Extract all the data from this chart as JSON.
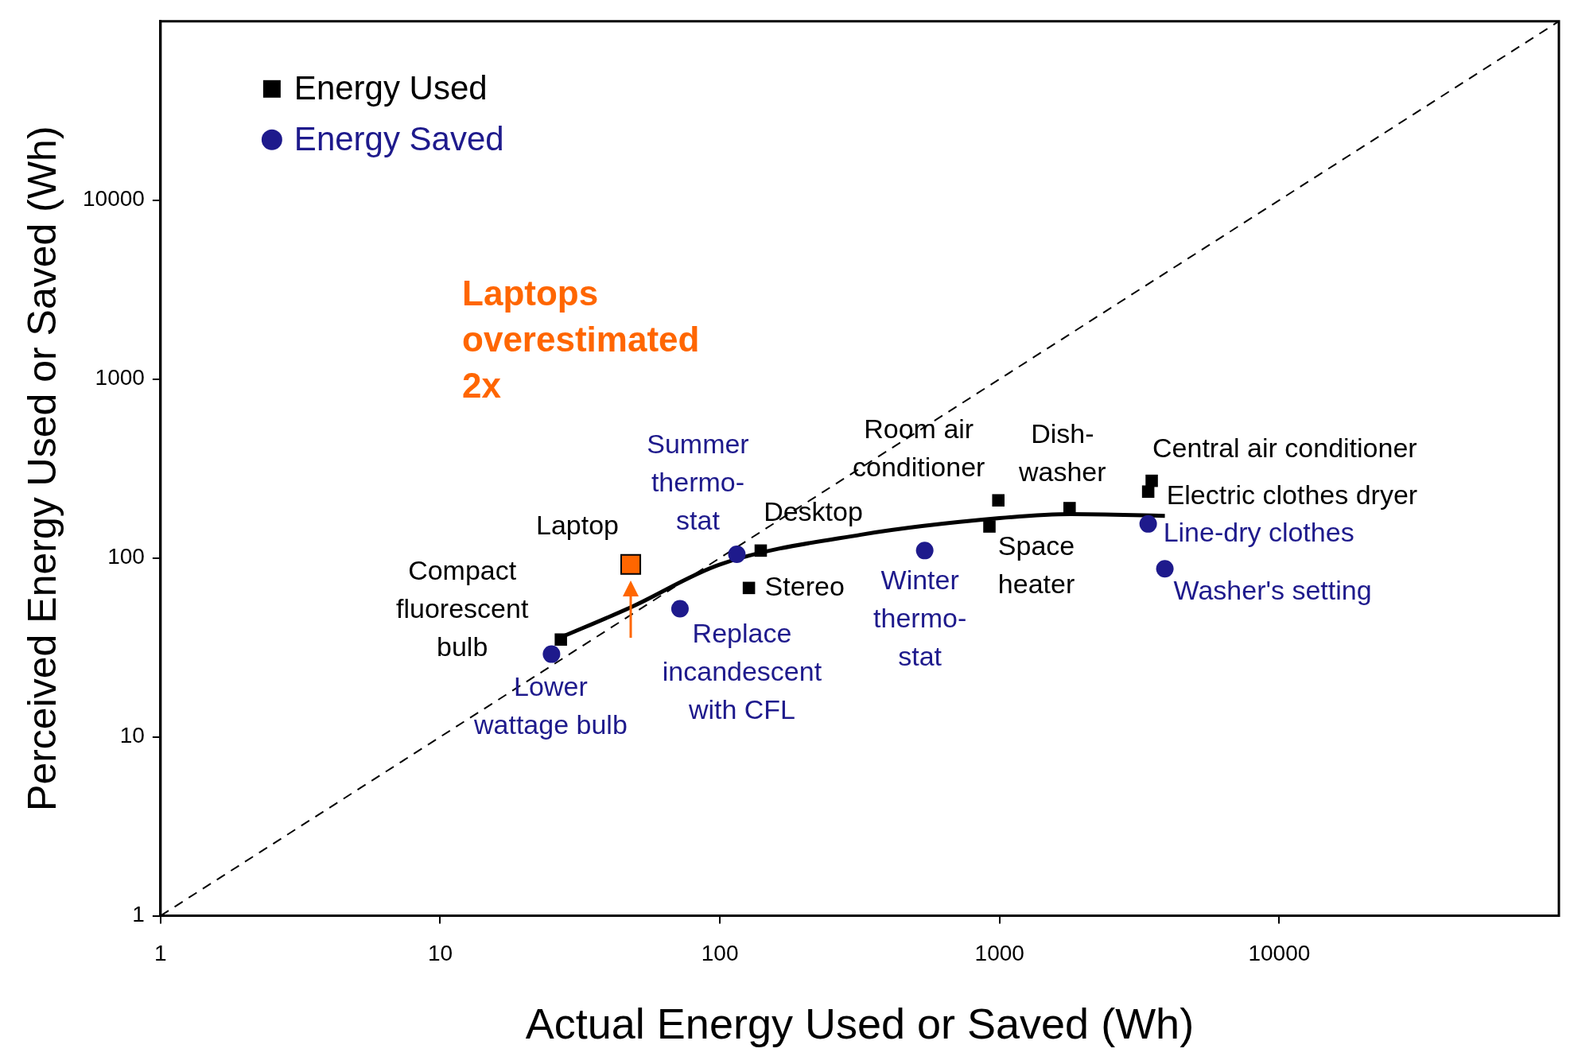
{
  "chart_data": {
    "type": "scatter",
    "xlabel": "Actual Energy Used or Saved (Wh)",
    "ylabel": "Perceived Energy Used or Saved (Wh)",
    "log": "xy",
    "xlim": [
      1,
      100000
    ],
    "ylim": [
      1,
      100000
    ],
    "xticks": [
      1,
      10,
      100,
      1000,
      10000
    ],
    "yticks": [
      1,
      10,
      100,
      1000,
      10000
    ],
    "legend": "top left",
    "series": [
      {
        "name": "Energy Used",
        "type": "scatter",
        "marker": "square",
        "color": "#000000",
        "x": [
          27,
          140,
          127,
          990,
          920,
          1780,
          3500,
          3400
        ],
        "values": [
          35,
          110,
          68,
          210,
          150,
          190,
          270,
          235
        ]
      },
      {
        "type": "scatter",
        "marker": "square",
        "color": "#ff6600",
        "x": [
          48
        ],
        "values": [
          92
        ]
      },
      {
        "name": "Energy Saved",
        "type": "scatter",
        "marker": "circle",
        "color": "#1e1a8c",
        "x": [
          25,
          115,
          72,
          540,
          3400,
          3900
        ],
        "values": [
          29,
          105,
          52,
          110,
          155,
          87
        ]
      },
      {
        "type": "line",
        "marker": "none",
        "color": "#000000",
        "line_style": "solid",
        "x": [
          27,
          48,
          100,
          320,
          1000,
          1800,
          3900
        ],
        "values": [
          36,
          53,
          92,
          135,
          167,
          176,
          172
        ]
      },
      {
        "type": "line",
        "marker": "none",
        "color": "#000000",
        "line_style": "dashed",
        "x": [
          1,
          100000
        ],
        "values": [
          1,
          100000
        ]
      }
    ],
    "annotations": [
      {
        "text": "Compact\nfluorescent\nbulb",
        "x": 27,
        "y": 35
      },
      {
        "text": "Laptop",
        "x": 48,
        "y": 92
      },
      {
        "text": "Desktop",
        "x": 140,
        "y": 110
      },
      {
        "text": "Stereo",
        "x": 127,
        "y": 68
      },
      {
        "text": "Room air\nconditioner",
        "x": 990,
        "y": 210
      },
      {
        "text": "Space\nheater",
        "x": 920,
        "y": 150
      },
      {
        "text": "Dish-\nwasher",
        "x": 1780,
        "y": 190
      },
      {
        "text": "Central air conditioner",
        "x": 3500,
        "y": 270
      },
      {
        "text": "Electric clothes dryer",
        "x": 3400,
        "y": 235
      },
      {
        "text": "Lower\nwattage bulb",
        "x": 25,
        "y": 29
      },
      {
        "text": "Summer\nthermo-\nstat",
        "x": 115,
        "y": 105
      },
      {
        "text": "Replace\nincandescent\nwith CFL",
        "x": 72,
        "y": 52
      },
      {
        "text": "Winter\nthermo-\nstat",
        "x": 540,
        "y": 110
      },
      {
        "text": "Line-dry clothes",
        "x": 3400,
        "y": 155
      },
      {
        "text": "Washer's setting",
        "x": 3900,
        "y": 87
      },
      "Laptops\noverestimated\n2x"
    ]
  }
}
